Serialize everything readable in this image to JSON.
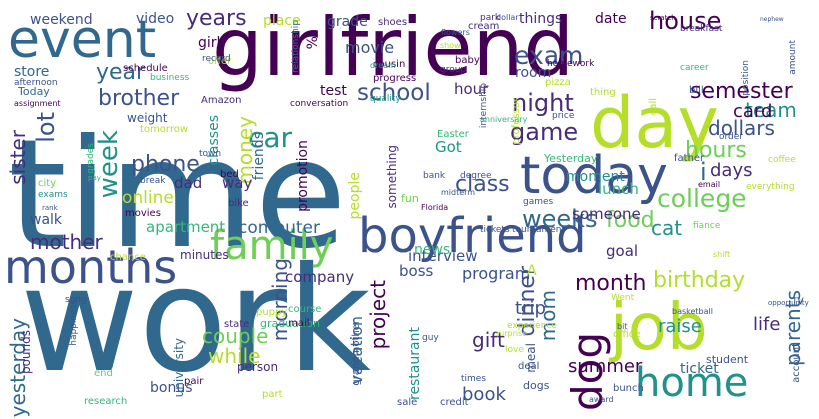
{
  "palette": {
    "dark_purple": "#440154",
    "purple": "#472c7a",
    "blue": "#3b528b",
    "steel_blue": "#31688e",
    "teal": "#21918c",
    "green_teal": "#35b779",
    "green": "#6ece58",
    "lime": "#b5de2b",
    "yellow": "#fde725"
  },
  "words": [
    {
      "text": "time",
      "color": "#31688e"
    },
    {
      "text": "work",
      "color": "#31688e"
    },
    {
      "text": "girlfriend",
      "color": "#440154"
    },
    {
      "text": "day",
      "color": "#b5de2b"
    },
    {
      "text": "event",
      "color": "#31688e"
    },
    {
      "text": "boyfriend",
      "color": "#3b528b"
    },
    {
      "text": "family",
      "color": "#6ece58"
    },
    {
      "text": "months",
      "color": "#3b528b"
    },
    {
      "text": "today",
      "color": "#3b528b"
    },
    {
      "text": "job",
      "color": "#b5de2b"
    },
    {
      "text": "home",
      "color": "#21918c"
    },
    {
      "text": "dog",
      "color": "#440154"
    },
    {
      "text": "school",
      "color": "#3b528b"
    },
    {
      "text": "college",
      "color": "#6ece58"
    },
    {
      "text": "exam",
      "color": "#3b528b"
    },
    {
      "text": "night",
      "color": "#472c7a"
    },
    {
      "text": "car",
      "color": "#21918c"
    },
    {
      "text": "game",
      "color": "#472c7a"
    },
    {
      "text": "week",
      "color": "#21918c"
    },
    {
      "text": "phone",
      "color": "#3b528b"
    },
    {
      "text": "lot",
      "color": "#3b528b"
    },
    {
      "text": "brother",
      "color": "#3b528b"
    },
    {
      "text": "year",
      "color": "#31688e"
    },
    {
      "text": "years",
      "color": "#472c7a"
    },
    {
      "text": "house",
      "color": "#440154"
    },
    {
      "text": "semester",
      "color": "#440154"
    },
    {
      "text": "month",
      "color": "#440154"
    },
    {
      "text": "birthday",
      "color": "#b5de2b"
    },
    {
      "text": "hours",
      "color": "#6ece58"
    },
    {
      "text": "weeks",
      "color": "#31688e"
    },
    {
      "text": "class",
      "color": "#3b528b"
    },
    {
      "text": "dinner",
      "color": "#3b528b"
    },
    {
      "text": "morning",
      "color": "#3b528b"
    },
    {
      "text": "mother",
      "color": "#472c7a"
    },
    {
      "text": "sister",
      "color": "#472c7a"
    },
    {
      "text": "yesterday",
      "color": "#31688e"
    },
    {
      "text": "money",
      "color": "#b5de2b"
    },
    {
      "text": "food",
      "color": "#6ece58"
    },
    {
      "text": "project",
      "color": "#440154"
    },
    {
      "text": "parents",
      "color": "#31688e"
    },
    {
      "text": "dollars",
      "color": "#3b528b"
    },
    {
      "text": "team",
      "color": "#21918c"
    },
    {
      "text": "card",
      "color": "#440154"
    },
    {
      "text": "i",
      "color": "#31688e"
    },
    {
      "text": "days",
      "color": "#472c7a"
    },
    {
      "text": "cat",
      "color": "#21918c"
    },
    {
      "text": "life",
      "color": "#472c7a"
    },
    {
      "text": "mom",
      "color": "#31688e"
    },
    {
      "text": "couple",
      "color": "#6ece58"
    },
    {
      "text": "while",
      "color": "#b5de2b"
    },
    {
      "text": "gift",
      "color": "#472c7a"
    },
    {
      "text": "trip",
      "color": "#3b528b"
    },
    {
      "text": "raise",
      "color": "#21918c"
    },
    {
      "text": "interview",
      "color": "#3b528b"
    },
    {
      "text": "company",
      "color": "#472c7a"
    },
    {
      "text": "computer",
      "color": "#31688e"
    },
    {
      "text": "apartment",
      "color": "#35b779"
    },
    {
      "text": "vacation",
      "color": "#31688e"
    },
    {
      "text": "restaurant",
      "color": "#21918c"
    },
    {
      "text": "summer",
      "color": "#440154"
    },
    {
      "text": "book",
      "color": "#3b528b"
    },
    {
      "text": "ticket",
      "color": "#31688e"
    },
    {
      "text": "program",
      "color": "#3b528b"
    },
    {
      "text": "boss",
      "color": "#3b528b"
    },
    {
      "text": "news",
      "color": "#35b779"
    },
    {
      "text": "goal",
      "color": "#472c7a"
    },
    {
      "text": "someone",
      "color": "#472c7a"
    },
    {
      "text": "lunch",
      "color": "#35b779"
    },
    {
      "text": "moment",
      "color": "#21918c"
    },
    {
      "text": "Got",
      "color": "#21918c"
    },
    {
      "text": "room",
      "color": "#3b528b"
    },
    {
      "text": "hour",
      "color": "#472c7a"
    },
    {
      "text": "test",
      "color": "#440154"
    },
    {
      "text": "movie",
      "color": "#3b528b"
    },
    {
      "text": "grade",
      "color": "#3b528b"
    },
    {
      "text": "place",
      "color": "#b5de2b"
    },
    {
      "text": "things",
      "color": "#472c7a"
    },
    {
      "text": "date",
      "color": "#440154"
    },
    {
      "text": "weekend",
      "color": "#3b528b"
    },
    {
      "text": "video",
      "color": "#3b528b"
    },
    {
      "text": "girl",
      "color": "#440154"
    },
    {
      "text": "store",
      "color": "#31688e"
    },
    {
      "text": "walk",
      "color": "#3b528b"
    },
    {
      "text": "dad",
      "color": "#472c7a"
    },
    {
      "text": "way",
      "color": "#472c7a"
    },
    {
      "text": "online",
      "color": "#b5de2b"
    },
    {
      "text": "promotion",
      "color": "#440154"
    },
    {
      "text": "people",
      "color": "#b5de2b"
    },
    {
      "text": "friends",
      "color": "#31688e"
    },
    {
      "text": "classes",
      "color": "#21918c"
    },
    {
      "text": "bonus",
      "color": "#3b528b"
    },
    {
      "text": "university",
      "color": "#31688e"
    },
    {
      "text": "person",
      "color": "#472c7a"
    },
    {
      "text": "graduation",
      "color": "#35b779"
    },
    {
      "text": "weight",
      "color": "#3b528b"
    },
    {
      "text": "Today",
      "color": "#31688e"
    },
    {
      "text": "minutes",
      "color": "#472c7a"
    },
    {
      "text": "course",
      "color": "#35b779"
    },
    {
      "text": "mail",
      "color": "#440154"
    },
    {
      "text": "state",
      "color": "#472c7a"
    },
    {
      "text": "pounds",
      "color": "#472c7a"
    },
    {
      "text": "song",
      "color": "#3b528b"
    },
    {
      "text": "happiness",
      "color": "#3b528b"
    },
    {
      "text": "grandmother",
      "color": "#3b528b"
    },
    {
      "text": "sale",
      "color": "#3b528b"
    },
    {
      "text": "research",
      "color": "#35b779"
    },
    {
      "text": "part",
      "color": "#b5de2b"
    },
    {
      "text": "pair",
      "color": "#440154"
    },
    {
      "text": "end",
      "color": "#6ece58"
    },
    {
      "text": "fun",
      "color": "#6ece58"
    },
    {
      "text": "credit",
      "color": "#3b528b"
    },
    {
      "text": "dogs",
      "color": "#3b528b"
    },
    {
      "text": "deal",
      "color": "#3b528b"
    },
    {
      "text": "meal",
      "color": "#3b528b"
    },
    {
      "text": "bunch",
      "color": "#3b528b"
    },
    {
      "text": "student",
      "color": "#3b528b"
    },
    {
      "text": "account",
      "color": "#3b528b"
    },
    {
      "text": "something",
      "color": "#472c7a"
    },
    {
      "text": "Amazon",
      "color": "#472c7a"
    },
    {
      "text": "conversation",
      "color": "#440154"
    },
    {
      "text": "cousin",
      "color": "#440154"
    },
    {
      "text": "progress",
      "color": "#440154"
    },
    {
      "text": "offer",
      "color": "#b5de2b"
    },
    {
      "text": "record",
      "color": "#3b528b"
    },
    {
      "text": "schedule",
      "color": "#440154"
    },
    {
      "text": "business",
      "color": "#35b779"
    },
    {
      "text": "afternoon",
      "color": "#3b528b"
    },
    {
      "text": "assignment",
      "color": "#440154"
    },
    {
      "text": "shoes",
      "color": "#472c7a"
    },
    {
      "text": "relationship",
      "color": "#31688e"
    },
    {
      "text": "dream",
      "color": "#21918c"
    },
    {
      "text": "quality",
      "color": "#21918c"
    },
    {
      "text": "park",
      "color": "#472c7a"
    },
    {
      "text": "cream",
      "color": "#472c7a"
    },
    {
      "text": "dollar",
      "color": "#3b528b"
    },
    {
      "text": "flowers",
      "color": "#3b528b"
    },
    {
      "text": "show",
      "color": "#b5de2b"
    },
    {
      "text": "group",
      "color": "#472c7a"
    },
    {
      "text": "baby",
      "color": "#440154"
    },
    {
      "text": "homework",
      "color": "#440154"
    },
    {
      "text": "breakfast",
      "color": "#472c7a"
    },
    {
      "text": "scratch",
      "color": "#440154"
    },
    {
      "text": "nephew",
      "color": "#3b528b"
    },
    {
      "text": "career",
      "color": "#35b779"
    },
    {
      "text": "position",
      "color": "#3b528b"
    },
    {
      "text": "amount",
      "color": "#3b528b"
    },
    {
      "text": "professor",
      "color": "#b5de2b"
    },
    {
      "text": "pizza",
      "color": "#b5de2b"
    },
    {
      "text": "thing",
      "color": "#b5de2b"
    },
    {
      "text": "bill",
      "color": "#3b528b"
    },
    {
      "text": "internship",
      "color": "#3b528b"
    },
    {
      "text": "anniversary",
      "color": "#35b779"
    },
    {
      "text": "price",
      "color": "#3b528b"
    },
    {
      "text": "call",
      "color": "#b5de2b"
    },
    {
      "text": "order",
      "color": "#3b528b"
    },
    {
      "text": "coffee",
      "color": "#b5de2b"
    },
    {
      "text": "father",
      "color": "#3b528b"
    },
    {
      "text": "Easter",
      "color": "#35b779"
    },
    {
      "text": "Yesterday",
      "color": "#35b779"
    },
    {
      "text": "bank",
      "color": "#3b528b"
    },
    {
      "text": "degree",
      "color": "#3b528b"
    },
    {
      "text": "midterm",
      "color": "#3b528b"
    },
    {
      "text": "games",
      "color": "#3b528b"
    },
    {
      "text": "Florida",
      "color": "#440154"
    },
    {
      "text": "tickets",
      "color": "#3b528b"
    },
    {
      "text": "tournament",
      "color": "#3b528b"
    },
    {
      "text": "email",
      "color": "#440154"
    },
    {
      "text": "everything",
      "color": "#b5de2b"
    },
    {
      "text": "fiance",
      "color": "#6ece58"
    },
    {
      "text": "shift",
      "color": "#b5de2b"
    },
    {
      "text": "basketball",
      "color": "#3b528b"
    },
    {
      "text": "bit",
      "color": "#3b528b"
    },
    {
      "text": "office",
      "color": "#b5de2b"
    },
    {
      "text": "experience",
      "color": "#b5de2b"
    },
    {
      "text": "love",
      "color": "#b5de2b"
    },
    {
      "text": "times",
      "color": "#3b528b"
    },
    {
      "text": "guy",
      "color": "#3b528b"
    },
    {
      "text": "surprise",
      "color": "#b5de2b"
    },
    {
      "text": "award",
      "color": "#3b528b"
    },
    {
      "text": "Went",
      "color": "#b5de2b"
    },
    {
      "text": "opportunity",
      "color": "#3b528b"
    },
    {
      "text": "TV",
      "color": "#3b528b"
    },
    {
      "text": "puppy",
      "color": "#b5de2b"
    },
    {
      "text": "bed",
      "color": "#440154"
    },
    {
      "text": "town",
      "color": "#3b528b"
    },
    {
      "text": "tomorrow",
      "color": "#b5de2b"
    },
    {
      "text": "grades",
      "color": "#35b779"
    },
    {
      "text": "pay",
      "color": "#35b779"
    },
    {
      "text": "break",
      "color": "#3b528b"
    },
    {
      "text": "bike",
      "color": "#472c7a"
    },
    {
      "text": "movies",
      "color": "#440154"
    },
    {
      "text": "city",
      "color": "#6ece58"
    },
    {
      "text": "exams",
      "color": "#21918c"
    },
    {
      "text": "rank",
      "color": "#3b528b"
    },
    {
      "text": "chance",
      "color": "#b5de2b"
    },
    {
      "text": "%",
      "color": "#440154"
    },
    {
      "text": "A",
      "color": "#b5de2b"
    }
  ]
}
